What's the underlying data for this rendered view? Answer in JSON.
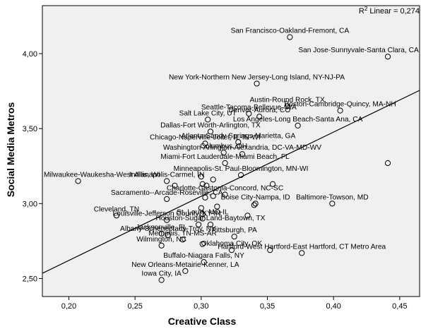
{
  "chart_data": {
    "type": "scatter",
    "xlabel": "Creative Class",
    "ylabel": "Social Media Metros",
    "xlim": [
      0.18,
      0.465
    ],
    "ylim": [
      2.38,
      4.32
    ],
    "x_ticks": [
      0.2,
      0.25,
      0.3,
      0.35,
      0.4,
      0.45
    ],
    "x_tick_labels": [
      "0,20",
      "0,25",
      "0,30",
      "0,35",
      "0,40",
      "0,45"
    ],
    "y_ticks": [
      2.5,
      3.0,
      3.5,
      4.0
    ],
    "y_tick_labels": [
      "2,50",
      "3,00",
      "3,50",
      "4,00"
    ],
    "grid": false,
    "background": "#f0f0f0",
    "fit_line": {
      "label": "R² Linear = 0,274",
      "r2": 0.274,
      "points": [
        [
          0.18,
          2.535
        ],
        [
          0.465,
          3.755
        ]
      ]
    },
    "points": [
      {
        "x": 0.367,
        "y": 4.11,
        "label": "San Francisco-Oakland-Fremont, CA"
      },
      {
        "x": 0.441,
        "y": 3.98,
        "label": "San Jose-Sunnyvale-Santa Clara, CA"
      },
      {
        "x": 0.342,
        "y": 3.8,
        "label": "New York-Northern New Jersey-Long Island, NY-NJ-PA"
      },
      {
        "x": 0.365,
        "y": 3.65,
        "label": "Austin-Round Rock, TX"
      },
      {
        "x": 0.336,
        "y": 3.6,
        "label": "Seattle-Tacoma-Bellevue, WA"
      },
      {
        "x": 0.405,
        "y": 3.62,
        "label": "Boston-Cambridge-Quincy, MA-NH"
      },
      {
        "x": 0.305,
        "y": 3.56,
        "label": "Salt Lake City, UT"
      },
      {
        "x": 0.344,
        "y": 3.58,
        "label": "Denver-Aurora, CO"
      },
      {
        "x": 0.373,
        "y": 3.52,
        "label": "Los Angeles-Long Beach-Santa Ana, CA"
      },
      {
        "x": 0.307,
        "y": 3.48,
        "label": "Dallas-Fort Worth-Arlington, TX"
      },
      {
        "x": 0.328,
        "y": 3.41,
        "label": "Atlanta-Sandy Springs-Marietta, GA"
      },
      {
        "x": 0.303,
        "y": 3.4,
        "label": "Chicago-Naperville-Joilet, IL-IN-WI"
      },
      {
        "x": 0.317,
        "y": 3.34,
        "label": "Columbus, OH"
      },
      {
        "x": 0.331,
        "y": 3.33,
        "label": "Washington-Arlington-Alexandria, DC-VA-MD-WV"
      },
      {
        "x": 0.318,
        "y": 3.27,
        "label": "Miami-Fort Lauderdale-Miami Beach, FL"
      },
      {
        "x": 0.441,
        "y": 3.27,
        "label": ""
      },
      {
        "x": 0.33,
        "y": 3.19,
        "label": "Minneapolis-St. Paul-Bloomington, MN-WI"
      },
      {
        "x": 0.207,
        "y": 3.15,
        "label": "Milwaukee-Waukesha-West Allis, WI"
      },
      {
        "x": 0.274,
        "y": 3.15,
        "label": "Indianapolis-Carmel, IN"
      },
      {
        "x": 0.3,
        "y": 3.18,
        "label": ""
      },
      {
        "x": 0.309,
        "y": 3.16,
        "label": ""
      },
      {
        "x": 0.301,
        "y": 3.13,
        "label": ""
      },
      {
        "x": 0.28,
        "y": 3.12,
        "label": ""
      },
      {
        "x": 0.354,
        "y": 3.13,
        "label": ""
      },
      {
        "x": 0.304,
        "y": 3.12,
        "label": ""
      },
      {
        "x": 0.318,
        "y": 3.06,
        "label": "Charlotte-Gastonia-Concord, NC-SC"
      },
      {
        "x": 0.309,
        "y": 3.05,
        "label": ""
      },
      {
        "x": 0.303,
        "y": 3.04,
        "label": ""
      },
      {
        "x": 0.274,
        "y": 3.03,
        "label": "Sacramento--Arcade-Roseville, CA"
      },
      {
        "x": 0.341,
        "y": 3.0,
        "label": "Boise City-Nampa, ID"
      },
      {
        "x": 0.34,
        "y": 2.99,
        "label": ""
      },
      {
        "x": 0.399,
        "y": 3.0,
        "label": "Baltimore-Towson, MD"
      },
      {
        "x": 0.312,
        "y": 2.98,
        "label": ""
      },
      {
        "x": 0.3,
        "y": 2.97,
        "label": ""
      },
      {
        "x": 0.236,
        "y": 2.92,
        "label": "Cleveland, TN"
      },
      {
        "x": 0.301,
        "y": 2.93,
        "label": ""
      },
      {
        "x": 0.335,
        "y": 2.92,
        "label": ""
      },
      {
        "x": 0.274,
        "y": 2.89,
        "label": "Louisville-Jefferson County, KY-IN"
      },
      {
        "x": 0.301,
        "y": 2.9,
        "label": "St. Louis, MO-IL"
      },
      {
        "x": 0.307,
        "y": 2.86,
        "label": "Houston-Sugar Land-Baytown, TX"
      },
      {
        "x": 0.298,
        "y": 2.86,
        "label": ""
      },
      {
        "x": 0.27,
        "y": 2.8,
        "label": "Jacksonville, FL"
      },
      {
        "x": 0.275,
        "y": 2.79,
        "label": "Albany-Schenectady-Troy, NY"
      },
      {
        "x": 0.325,
        "y": 2.78,
        "label": "Pittsburgh, PA"
      },
      {
        "x": 0.286,
        "y": 2.76,
        "label": "Memphis, TN-MS-AR"
      },
      {
        "x": 0.27,
        "y": 2.72,
        "label": "Wilmington, NC"
      },
      {
        "x": 0.301,
        "y": 2.73,
        "label": ""
      },
      {
        "x": 0.323,
        "y": 2.69,
        "label": "Oklahoma City, OK"
      },
      {
        "x": 0.352,
        "y": 2.69,
        "label": ""
      },
      {
        "x": 0.376,
        "y": 2.67,
        "label": "Hartford-West Hartford-East Hartford, CT  Metro Area"
      },
      {
        "x": 0.302,
        "y": 2.61,
        "label": "Buffalo-Niagara Falls, NY"
      },
      {
        "x": 0.288,
        "y": 2.55,
        "label": "New Orleans-Metairie-Kenner, LA"
      },
      {
        "x": 0.27,
        "y": 2.49,
        "label": "Iowa City, IA"
      }
    ]
  }
}
